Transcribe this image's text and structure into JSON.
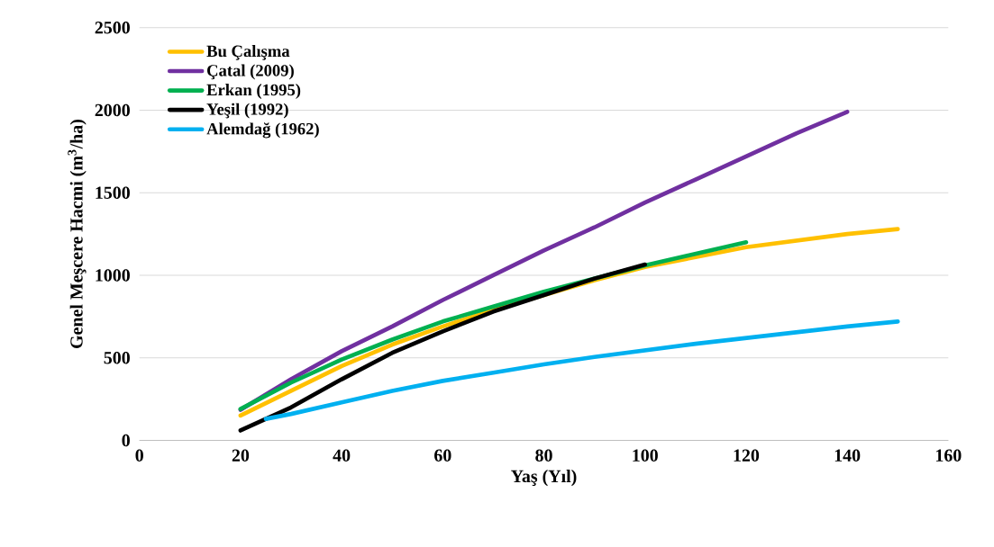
{
  "chart_data": {
    "type": "line",
    "xlabel": "Yaş (Yıl)",
    "ylabel": "Genel Meşcere Hacmi (m$^{3}$/ha)",
    "xlim": [
      0,
      160
    ],
    "xticks": [
      0,
      20,
      40,
      60,
      80,
      100,
      120,
      140,
      160
    ],
    "ylim": [
      0,
      2500
    ],
    "yticks": [
      0,
      500,
      1000,
      1500,
      2000,
      2500
    ],
    "grid": "y",
    "legend": "top left",
    "marker": "none",
    "line_style": "solid",
    "series": [
      {
        "name": "Bu Çalışma",
        "color": "#ffc000",
        "x": [
          20,
          30,
          40,
          50,
          60,
          70,
          80,
          90,
          100,
          110,
          120,
          130,
          140,
          150
        ],
        "values": [
          150,
          300,
          450,
          580,
          690,
          790,
          880,
          970,
          1050,
          1110,
          1170,
          1210,
          1250,
          1280
        ]
      },
      {
        "name": "Çatal (2009)",
        "color": "#7030a0",
        "x": [
          20,
          30,
          40,
          50,
          60,
          70,
          80,
          90,
          100,
          110,
          120,
          130,
          140
        ],
        "values": [
          185,
          370,
          540,
          690,
          850,
          1000,
          1150,
          1290,
          1440,
          1580,
          1720,
          1860,
          1990
        ]
      },
      {
        "name": "Erkan (1995)",
        "color": "#00b050",
        "x": [
          20,
          30,
          40,
          50,
          60,
          70,
          80,
          90,
          100,
          110,
          120
        ],
        "values": [
          190,
          350,
          490,
          610,
          720,
          810,
          900,
          980,
          1060,
          1130,
          1200
        ]
      },
      {
        "name": "Yeşil (1992)",
        "color": "#000000",
        "x": [
          20,
          30,
          40,
          50,
          60,
          70,
          80,
          90,
          100
        ],
        "values": [
          60,
          200,
          370,
          530,
          660,
          780,
          880,
          980,
          1065
        ]
      },
      {
        "name": "Alemdağ (1962)",
        "color": "#00b0f0",
        "x": [
          25,
          30,
          40,
          50,
          60,
          70,
          80,
          90,
          100,
          110,
          120,
          130,
          140,
          150
        ],
        "values": [
          130,
          160,
          230,
          300,
          360,
          410,
          460,
          505,
          545,
          585,
          620,
          655,
          690,
          720
        ]
      }
    ]
  }
}
